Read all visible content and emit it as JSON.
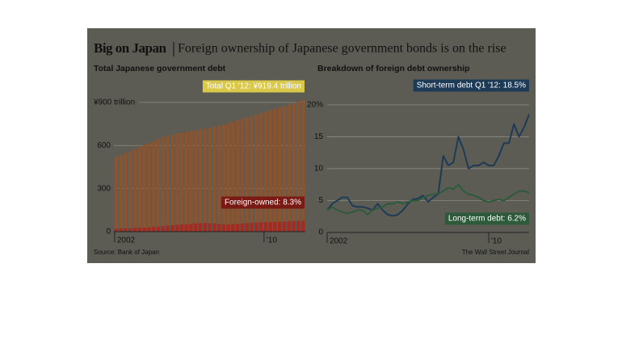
{
  "header": {
    "title": "Big on Japan",
    "subtitle": "Foreign ownership of Japanese government bonds is on the rise"
  },
  "chart_data": [
    {
      "type": "bar",
      "stacked": true,
      "title": "Total Japanese government debt",
      "categories": [
        "2002",
        null,
        null,
        null,
        null,
        null,
        null,
        null,
        null,
        null,
        null,
        null,
        null,
        null,
        null,
        null,
        null,
        null,
        null,
        null,
        null,
        null,
        null,
        null,
        null,
        null,
        null,
        null,
        null,
        null,
        null,
        null,
        "'10",
        null,
        null,
        null,
        null,
        null,
        null,
        null,
        null
      ],
      "series": [
        {
          "color": "#a8291d",
          "values": [
            22,
            22,
            23,
            24,
            25,
            27,
            28,
            30,
            33,
            35,
            38,
            42,
            45,
            48,
            50,
            52,
            55,
            58,
            60,
            62,
            60,
            58,
            55,
            52,
            50,
            52,
            55,
            58,
            60,
            62,
            64,
            65,
            66,
            67,
            68,
            69,
            70,
            72,
            73,
            75,
            76
          ]
        },
        {
          "color": "#8a5431",
          "values": [
            498,
            513,
            525,
            536,
            550,
            563,
            577,
            585,
            597,
            610,
            622,
            626,
            630,
            637,
            640,
            643,
            645,
            647,
            652,
            656,
            662,
            672,
            683,
            693,
            705,
            713,
            720,
            727,
            735,
            743,
            751,
            760,
            769,
            778,
            787,
            796,
            805,
            813,
            822,
            830,
            843
          ]
        }
      ],
      "ylim": [
        0,
        950
      ],
      "yticks": [
        0,
        300,
        600,
        {
          "value": 900,
          "label": "¥900 trillion"
        }
      ],
      "grid": true,
      "annotations": [
        {
          "text": "Total Q1 '12: ¥919.4 trillion",
          "color": "#d9c84a"
        },
        {
          "text": "Foreign-owned: 8.3%",
          "color": "#7a1a14"
        }
      ],
      "source": "Source: Bank of Japan"
    },
    {
      "type": "line",
      "title": "Breakdown of foreign debt ownership",
      "categories": [
        "2002",
        null,
        null,
        null,
        null,
        null,
        null,
        null,
        null,
        null,
        null,
        null,
        null,
        null,
        null,
        null,
        null,
        null,
        null,
        null,
        null,
        null,
        null,
        null,
        null,
        null,
        null,
        null,
        null,
        null,
        null,
        null,
        "'10",
        null,
        null,
        null,
        null,
        null,
        null,
        null,
        null
      ],
      "series": [
        {
          "color": "#1d3b57",
          "values": [
            3.5,
            4.5,
            5,
            5.5,
            5.5,
            4.2,
            4,
            4,
            3.8,
            3.5,
            4.5,
            3.5,
            2.8,
            2.6,
            2.8,
            3.5,
            4.5,
            5.2,
            5.3,
            5.8,
            4.8,
            5.5,
            6,
            12,
            10.5,
            11,
            15,
            13,
            10,
            10.5,
            10.5,
            11,
            10.5,
            10.5,
            12,
            14,
            14,
            17,
            15,
            16.5,
            18.5
          ]
        },
        {
          "color": "#2d5a3a",
          "values": [
            3.5,
            4,
            3.5,
            3.2,
            3,
            3.2,
            3.5,
            3.5,
            2.8,
            3.5,
            3.8,
            4,
            4.5,
            4.5,
            4.8,
            4.5,
            4.8,
            5,
            5,
            5.5,
            5.8,
            6,
            6,
            6.5,
            7,
            6.8,
            7.5,
            6.5,
            6,
            5.8,
            5.5,
            5,
            4.8,
            5,
            5.2,
            5,
            5.5,
            6,
            6.5,
            6.5,
            6.2
          ]
        }
      ],
      "ylim": [
        0,
        21
      ],
      "yticks": [
        0,
        5,
        10,
        15,
        {
          "value": 20,
          "label": "20%"
        }
      ],
      "grid": true,
      "annotations": [
        {
          "text": "Short-term debt Q1 '12: 18.5%",
          "color": "#1d3b57"
        },
        {
          "text": "Long-term debt: 6.2%",
          "color": "#2d5a3a"
        }
      ],
      "source": "The Wall Street Journal"
    }
  ]
}
